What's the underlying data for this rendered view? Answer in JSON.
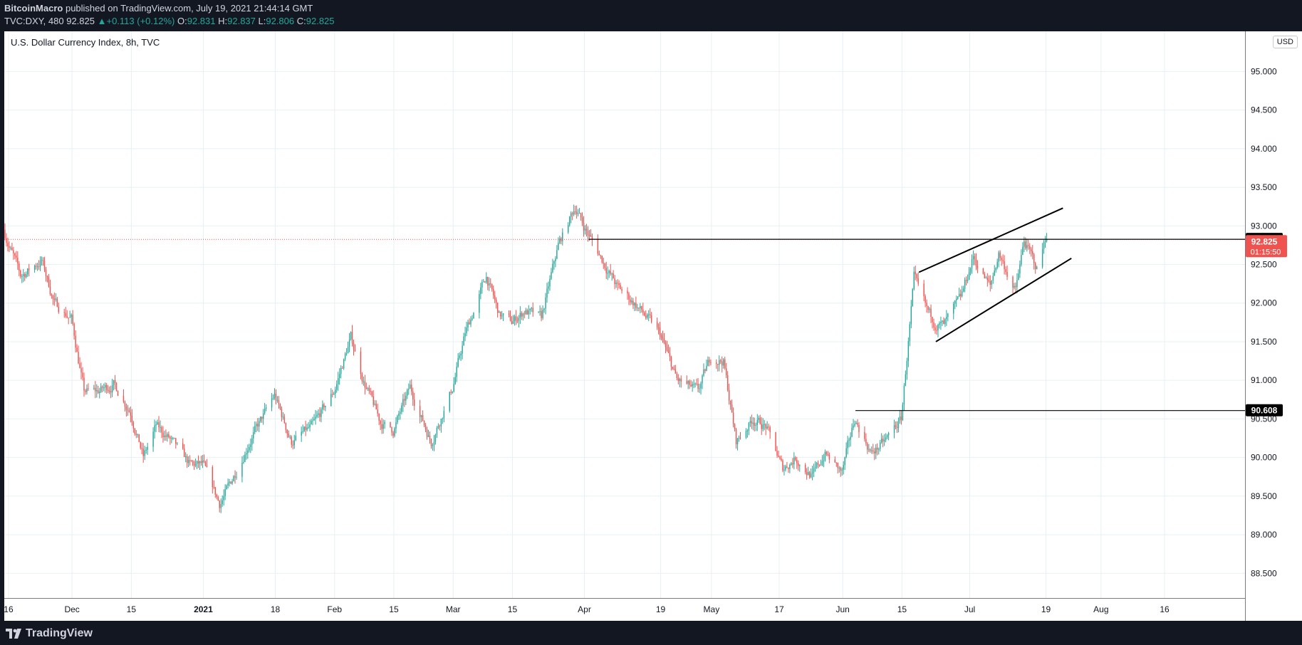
{
  "header": {
    "author": "BitcoinMacro",
    "published_text": "published on TradingView.com, July 19, 2021 21:44:14 GMT",
    "symbol": "TVC:DXY, 480",
    "last": "92.825",
    "change": "+0.113 (+0.12%)",
    "open_label": "O:",
    "open": "92.831",
    "high_label": "H:",
    "high": "92.837",
    "low_label": "L:",
    "low": "92.806",
    "close_label": "C:",
    "close": "92.825"
  },
  "footer": {
    "brand": "TradingView"
  },
  "colors": {
    "up": "#26a69a",
    "down": "#ef5350",
    "grid": "#e7f0f2",
    "background": "#ffffff",
    "frame": "#131722",
    "drawing": "#000000"
  },
  "chart_data": {
    "type": "candlestick",
    "title": "U.S. Dollar Currency Index, 8h, TVC",
    "currency": "USD",
    "y_ticks": [
      "95.000",
      "94.500",
      "94.000",
      "93.500",
      "93.000",
      "92.500",
      "92.000",
      "91.500",
      "91.000",
      "90.500",
      "90.000",
      "89.500",
      "89.000",
      "88.500"
    ],
    "x_ticks": [
      {
        "date": "2020-11-16",
        "label": "16",
        "bold": false
      },
      {
        "date": "2020-12-01",
        "label": "Dec",
        "bold": false
      },
      {
        "date": "2020-12-15",
        "label": "15",
        "bold": false
      },
      {
        "date": "2021-01-01",
        "label": "2021",
        "bold": true
      },
      {
        "date": "2021-01-18",
        "label": "18",
        "bold": false
      },
      {
        "date": "2021-02-01",
        "label": "Feb",
        "bold": false
      },
      {
        "date": "2021-02-15",
        "label": "15",
        "bold": false
      },
      {
        "date": "2021-03-01",
        "label": "Mar",
        "bold": false
      },
      {
        "date": "2021-03-15",
        "label": "15",
        "bold": false
      },
      {
        "date": "2021-04-01",
        "label": "Apr",
        "bold": false
      },
      {
        "date": "2021-04-19",
        "label": "19",
        "bold": false
      },
      {
        "date": "2021-05-01",
        "label": "May",
        "bold": false
      },
      {
        "date": "2021-05-17",
        "label": "17",
        "bold": false
      },
      {
        "date": "2021-06-01",
        "label": "Jun",
        "bold": false
      },
      {
        "date": "2021-06-15",
        "label": "15",
        "bold": false
      },
      {
        "date": "2021-07-01",
        "label": "Jul",
        "bold": false
      },
      {
        "date": "2021-07-19",
        "label": "19",
        "bold": false
      },
      {
        "date": "2021-08-01",
        "label": "Aug",
        "bold": false
      },
      {
        "date": "2021-08-16",
        "label": "16",
        "bold": false
      }
    ],
    "x_range": [
      "2020-11-15",
      "2021-09-04"
    ],
    "y_range": [
      88.18,
      95.52
    ],
    "price_path": [
      [
        "2020-11-15",
        92.95
      ],
      [
        "2020-11-19",
        92.35
      ],
      [
        "2020-11-24",
        92.55
      ],
      [
        "2020-11-27",
        92.0
      ],
      [
        "2020-12-01",
        91.8
      ],
      [
        "2020-12-04",
        90.85
      ],
      [
        "2020-12-07",
        90.85
      ],
      [
        "2020-12-11",
        90.95
      ],
      [
        "2020-12-15",
        90.6
      ],
      [
        "2020-12-18",
        90.0
      ],
      [
        "2020-12-21",
        90.4
      ],
      [
        "2020-12-24",
        90.25
      ],
      [
        "2020-12-29",
        89.9
      ],
      [
        "2021-01-01",
        89.9
      ],
      [
        "2021-01-05",
        89.4
      ],
      [
        "2021-01-07",
        89.6
      ],
      [
        "2021-01-12",
        90.2
      ],
      [
        "2021-01-18",
        90.8
      ],
      [
        "2021-01-22",
        90.2
      ],
      [
        "2021-01-27",
        90.4
      ],
      [
        "2021-02-01",
        90.85
      ],
      [
        "2021-02-05",
        91.55
      ],
      [
        "2021-02-08",
        91.0
      ],
      [
        "2021-02-12",
        90.45
      ],
      [
        "2021-02-15",
        90.35
      ],
      [
        "2021-02-19",
        90.9
      ],
      [
        "2021-02-24",
        90.2
      ],
      [
        "2021-03-01",
        90.9
      ],
      [
        "2021-03-04",
        91.6
      ],
      [
        "2021-03-09",
        92.35
      ],
      [
        "2021-03-12",
        91.85
      ],
      [
        "2021-03-15",
        91.75
      ],
      [
        "2021-03-18",
        91.9
      ],
      [
        "2021-03-22",
        91.8
      ],
      [
        "2021-03-26",
        92.75
      ],
      [
        "2021-03-30",
        93.25
      ],
      [
        "2021-04-01",
        93.0
      ],
      [
        "2021-04-05",
        92.6
      ],
      [
        "2021-04-09",
        92.2
      ],
      [
        "2021-04-13",
        92.0
      ],
      [
        "2021-04-19",
        91.6
      ],
      [
        "2021-04-23",
        91.0
      ],
      [
        "2021-04-28",
        90.85
      ],
      [
        "2021-05-01",
        91.3
      ],
      [
        "2021-05-04",
        91.25
      ],
      [
        "2021-05-07",
        90.2
      ],
      [
        "2021-05-11",
        90.5
      ],
      [
        "2021-05-14",
        90.4
      ],
      [
        "2021-05-18",
        89.85
      ],
      [
        "2021-05-21",
        90.0
      ],
      [
        "2021-05-25",
        89.75
      ],
      [
        "2021-05-28",
        90.05
      ],
      [
        "2021-06-01",
        89.8
      ],
      [
        "2021-06-04",
        90.5
      ],
      [
        "2021-06-08",
        90.05
      ],
      [
        "2021-06-11",
        90.2
      ],
      [
        "2021-06-15",
        90.5
      ],
      [
        "2021-06-17",
        91.7
      ],
      [
        "2021-06-18",
        92.3
      ],
      [
        "2021-06-21",
        91.9
      ],
      [
        "2021-06-23",
        91.75
      ],
      [
        "2021-06-25",
        91.7
      ],
      [
        "2021-06-29",
        92.05
      ],
      [
        "2021-07-02",
        92.6
      ],
      [
        "2021-07-06",
        92.2
      ],
      [
        "2021-07-08",
        92.65
      ],
      [
        "2021-07-12",
        92.15
      ],
      [
        "2021-07-14",
        92.8
      ],
      [
        "2021-07-17",
        92.45
      ],
      [
        "2021-07-19",
        92.825
      ]
    ],
    "horizontal_lines": [
      {
        "value": 92.826,
        "label": "92.826",
        "from": "2021-04-02"
      },
      {
        "value": 90.608,
        "label": "90.608",
        "from": "2021-06-04"
      }
    ],
    "trend_lines": [
      {
        "from": [
          "2021-06-19",
          92.4
        ],
        "to": [
          "2021-07-23",
          93.23
        ]
      },
      {
        "from": [
          "2021-06-23",
          91.5
        ],
        "to": [
          "2021-07-25",
          92.58
        ]
      }
    ],
    "last_price": {
      "value": 92.825,
      "label": "92.825",
      "countdown": "01:15:50"
    }
  }
}
